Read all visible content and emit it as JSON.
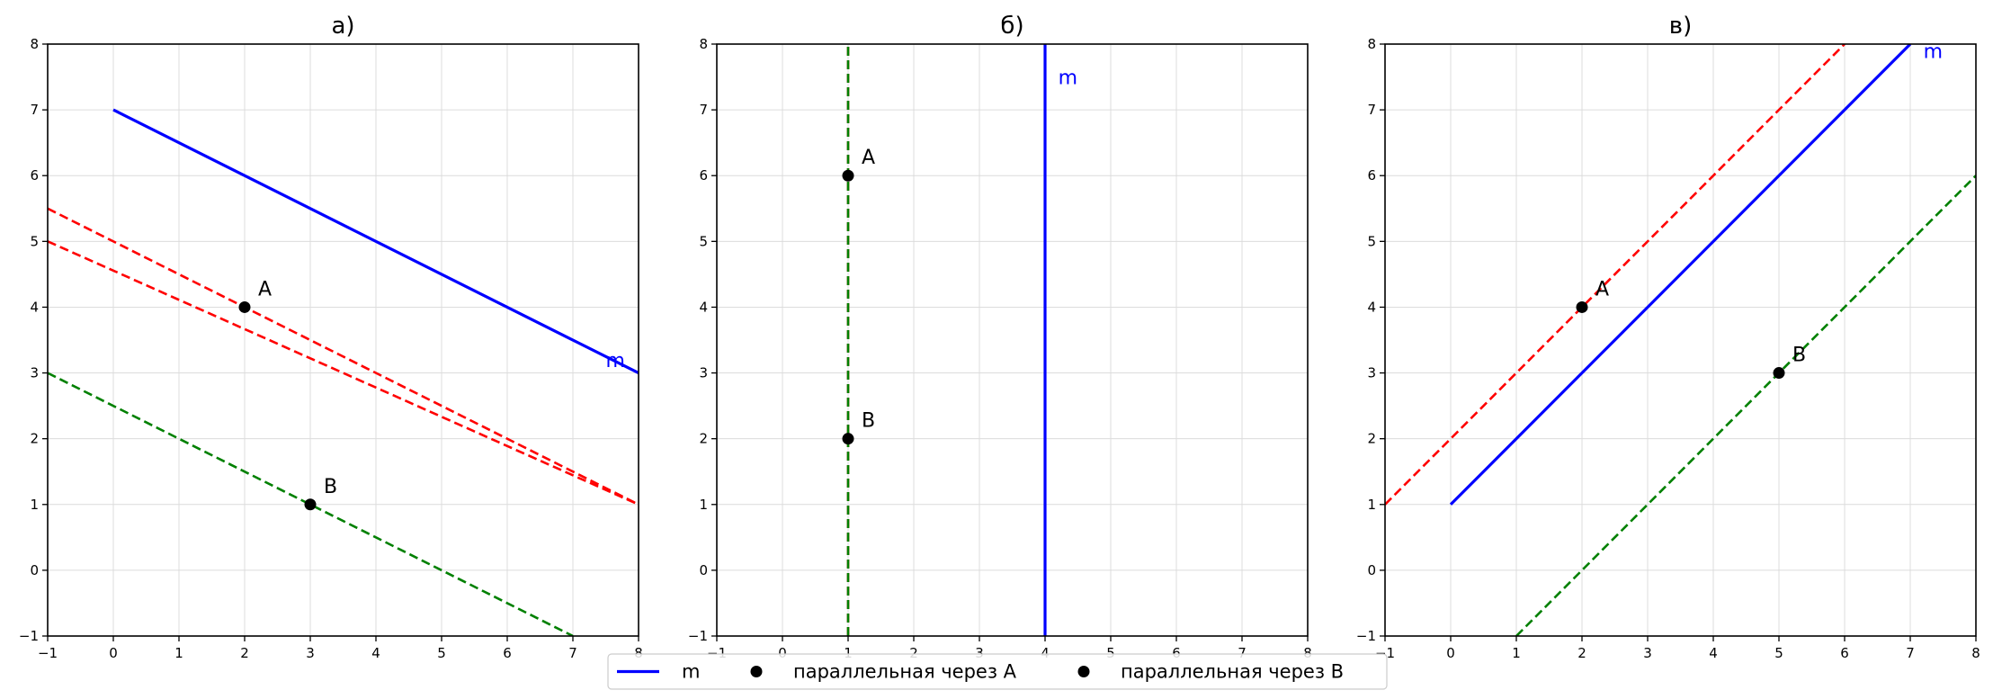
{
  "chart_data": [
    {
      "type": "line",
      "title": "а)",
      "xlim": [
        -1,
        8
      ],
      "ylim": [
        -1,
        8
      ],
      "xticks": [
        "−1",
        "0",
        "1",
        "2",
        "3",
        "4",
        "5",
        "6",
        "7",
        "8"
      ],
      "yticks": [
        "−1",
        "0",
        "1",
        "2",
        "3",
        "4",
        "5",
        "6",
        "7",
        "8"
      ],
      "grid": true,
      "lines": [
        {
          "role": "m",
          "color": "#0000ff",
          "style": "solid",
          "points": [
            [
              0,
              7
            ],
            [
              8,
              3
            ]
          ]
        },
        {
          "role": "parallel-A",
          "color": "#ff0000",
          "style": "dashed",
          "points": [
            [
              -1,
              5.5
            ],
            [
              8,
              1
            ]
          ]
        },
        {
          "role": "parallel-A",
          "color": "#ff0000",
          "style": "dashed",
          "points": [
            [
              -1,
              5
            ],
            [
              8,
              1
            ]
          ]
        },
        {
          "role": "parallel-B",
          "color": "#008000",
          "style": "dashed",
          "points": [
            [
              -1,
              3
            ],
            [
              7,
              -1
            ]
          ]
        }
      ],
      "points": [
        {
          "label": "A",
          "x": 2,
          "y": 4
        },
        {
          "label": "B",
          "x": 3,
          "y": 1
        }
      ],
      "line_label": {
        "text": "m",
        "x": 7.5,
        "y": 3.2
      }
    },
    {
      "type": "line",
      "title": "б)",
      "xlim": [
        -1,
        8
      ],
      "ylim": [
        -1,
        8
      ],
      "xticks": [
        "−1",
        "0",
        "1",
        "2",
        "3",
        "4",
        "5",
        "6",
        "7",
        "8"
      ],
      "yticks": [
        "−1",
        "0",
        "1",
        "2",
        "3",
        "4",
        "5",
        "6",
        "7",
        "8"
      ],
      "grid": true,
      "lines": [
        {
          "role": "m",
          "color": "#0000ff",
          "style": "solid",
          "points": [
            [
              4,
              -1
            ],
            [
              4,
              8
            ]
          ]
        },
        {
          "role": "parallel-A",
          "color": "#ff0000",
          "style": "dashed",
          "points": [
            [
              1,
              -1
            ],
            [
              1,
              8
            ]
          ]
        },
        {
          "role": "parallel-B",
          "color": "#008000",
          "style": "dashed",
          "points": [
            [
              1,
              -1
            ],
            [
              1,
              8
            ]
          ]
        }
      ],
      "points": [
        {
          "label": "A",
          "x": 1,
          "y": 6
        },
        {
          "label": "B",
          "x": 1,
          "y": 2
        }
      ],
      "line_label": {
        "text": "m",
        "x": 4.2,
        "y": 7.5
      }
    },
    {
      "type": "line",
      "title": "в)",
      "xlim": [
        -1,
        8
      ],
      "ylim": [
        -1,
        8
      ],
      "xticks": [
        "−1",
        "0",
        "1",
        "2",
        "3",
        "4",
        "5",
        "6",
        "7",
        "8"
      ],
      "yticks": [
        "−1",
        "0",
        "1",
        "2",
        "3",
        "4",
        "5",
        "6",
        "7",
        "8"
      ],
      "grid": true,
      "lines": [
        {
          "role": "m",
          "color": "#0000ff",
          "style": "solid",
          "points": [
            [
              0,
              1
            ],
            [
              7,
              8
            ]
          ]
        },
        {
          "role": "parallel-A",
          "color": "#ff0000",
          "style": "dashed",
          "points": [
            [
              -1,
              1
            ],
            [
              6,
              8
            ]
          ]
        },
        {
          "role": "parallel-B",
          "color": "#008000",
          "style": "dashed",
          "points": [
            [
              1,
              -1
            ],
            [
              8,
              6
            ]
          ]
        }
      ],
      "points": [
        {
          "label": "A",
          "x": 2,
          "y": 4
        },
        {
          "label": "B",
          "x": 5,
          "y": 3
        }
      ],
      "line_label": {
        "text": "m",
        "x": 7.2,
        "y": 7.9
      }
    }
  ],
  "legend": {
    "placement": "bottom-center",
    "entries": [
      {
        "label": "m",
        "marker": "line",
        "color": "#0000ff"
      },
      {
        "label": "параллельная через A",
        "marker": "dot",
        "color": "#000000"
      },
      {
        "label": "параллельная через B",
        "marker": "dot",
        "color": "#000000"
      }
    ]
  }
}
